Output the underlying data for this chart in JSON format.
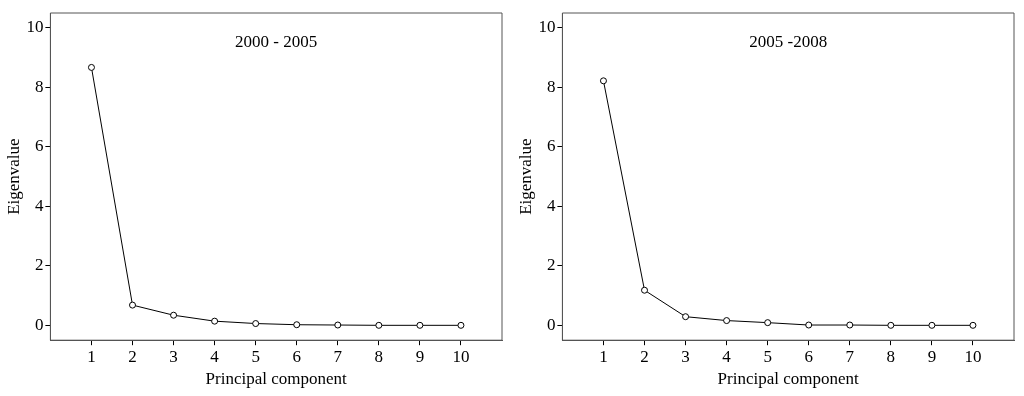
{
  "chart_data": [
    {
      "type": "line",
      "title": "2000 - 2005",
      "xlabel": "Principal component",
      "ylabel": "Eigenvalue",
      "x": [
        1,
        2,
        3,
        4,
        5,
        6,
        7,
        8,
        9,
        10
      ],
      "series": [
        {
          "color": "#000000",
          "values": [
            8.67,
            0.68,
            0.34,
            0.14,
            0.06,
            0.02,
            0.01,
            0,
            0,
            0
          ]
        }
      ],
      "xlim": [
        0,
        11
      ],
      "xticks": [
        1,
        2,
        3,
        4,
        5,
        6,
        7,
        8,
        9,
        10
      ],
      "ylim": [
        -0.5,
        10.5
      ],
      "yticks": [
        0,
        2,
        4,
        6,
        8,
        10
      ],
      "grid": false,
      "legend": false,
      "marker": "circle",
      "line_style": "solid"
    },
    {
      "type": "line",
      "title": "2005 -2008",
      "xlabel": "Principal component",
      "ylabel": "Eigenvalue",
      "x": [
        1,
        2,
        3,
        4,
        5,
        6,
        7,
        8,
        9,
        10
      ],
      "series": [
        {
          "color": "#000000",
          "values": [
            8.22,
            1.18,
            0.29,
            0.16,
            0.09,
            0.01,
            0.01,
            0,
            0,
            0
          ]
        }
      ],
      "xlim": [
        0,
        11
      ],
      "xticks": [
        1,
        2,
        3,
        4,
        5,
        6,
        7,
        8,
        9,
        10
      ],
      "ylim": [
        -0.5,
        10.5
      ],
      "yticks": [
        0,
        2,
        4,
        6,
        8,
        10
      ],
      "grid": false,
      "legend": false,
      "marker": "circle",
      "line_style": "solid"
    }
  ]
}
